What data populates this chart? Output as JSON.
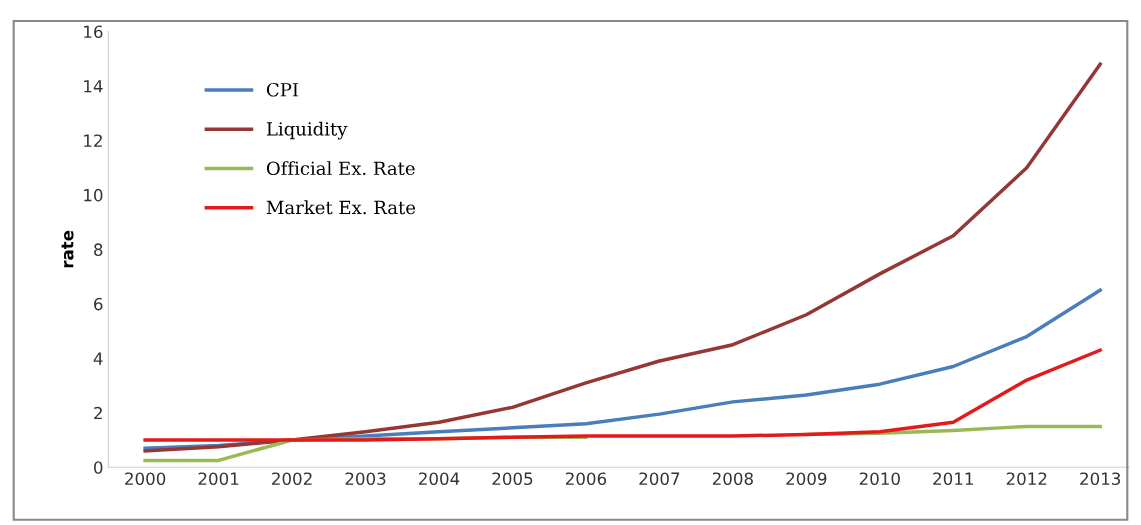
{
  "chart_data": {
    "type": "line",
    "ylabel": "rate",
    "categories": [
      "2000",
      "2001",
      "2002",
      "2003",
      "2004",
      "2005",
      "2006",
      "2007",
      "2008",
      "2009",
      "2010",
      "2011",
      "2012",
      "2013"
    ],
    "series": [
      {
        "name": "CPI",
        "color": "#4a7ebb",
        "values": [
          0.7,
          0.8,
          1.0,
          1.15,
          1.3,
          1.45,
          1.6,
          1.95,
          2.4,
          2.65,
          3.05,
          3.7,
          4.8,
          6.5
        ]
      },
      {
        "name": "Liquidity",
        "color": "#953735",
        "values": [
          0.6,
          0.75,
          1.0,
          1.3,
          1.65,
          2.2,
          3.1,
          3.9,
          4.5,
          5.6,
          7.1,
          8.5,
          11.0,
          14.8
        ]
      },
      {
        "name": "Official Ex. Rate",
        "color": "#98b954",
        "values": [
          0.25,
          0.25,
          1.0,
          1.05,
          1.05,
          1.1,
          1.1,
          null,
          null,
          1.2,
          1.25,
          1.35,
          1.5,
          1.5
        ]
      },
      {
        "name": "Market Ex. Rate",
        "color": "#e31a1c",
        "values": [
          1.0,
          1.0,
          1.0,
          1.0,
          1.05,
          1.1,
          1.15,
          1.15,
          1.15,
          1.2,
          1.3,
          1.65,
          3.2,
          4.3
        ]
      }
    ],
    "ylim": [
      0,
      16
    ],
    "yticks": [
      0,
      2,
      4,
      6,
      8,
      10,
      12,
      14,
      16
    ],
    "grid": false,
    "legend": "top left",
    "marker": "none",
    "line_style": "solid"
  }
}
